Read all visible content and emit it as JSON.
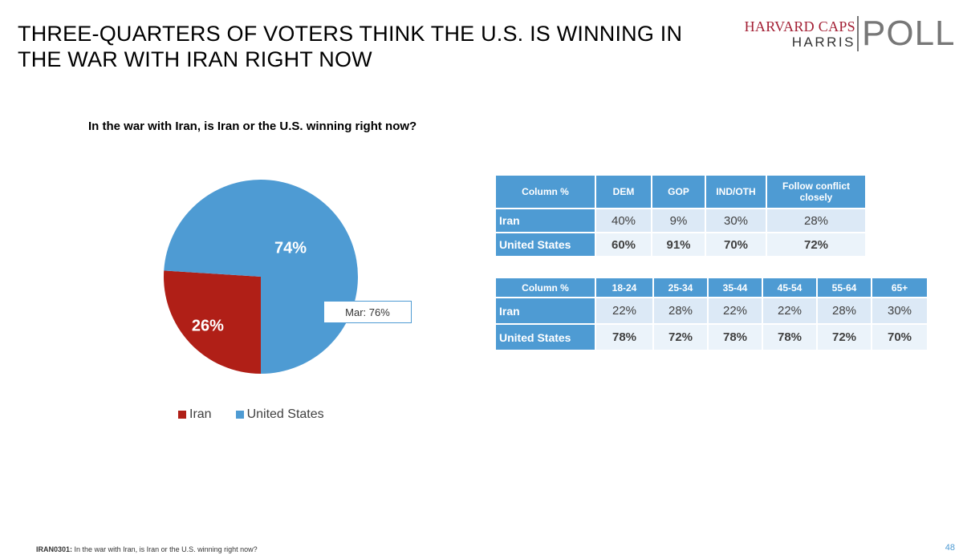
{
  "slide": {
    "title": "THREE-QUARTERS OF VOTERS THINK THE U.S. IS WINNING IN THE WAR WITH IRAN RIGHT NOW",
    "question": "In the war with Iran, is Iran or the U.S. winning right now?",
    "page_number": "48"
  },
  "logo": {
    "line1": "HARVARD CAPS",
    "line2": "HARRIS",
    "line3": "POLL"
  },
  "footer": {
    "code": "IRAN0301:",
    "text": "In the war with Iran, is Iran or the U.S. winning right now?"
  },
  "colors": {
    "iran": "#b01f17",
    "united_states": "#4e9bd3"
  },
  "chart_data": [
    {
      "type": "pie",
      "title": "In the war with Iran, is Iran or the U.S. winning right now?",
      "categories": [
        "Iran",
        "United States"
      ],
      "values": [
        26,
        74
      ],
      "data_labels": [
        "26%",
        "74%"
      ],
      "annotation": "Mar: 76%",
      "legend_position": "bottom"
    },
    {
      "type": "table",
      "header_label": "Column %",
      "columns": [
        "DEM",
        "GOP",
        "IND/OTH",
        "Follow conflict closely"
      ],
      "rows": [
        {
          "label": "Iran",
          "values": [
            "40%",
            "9%",
            "30%",
            "28%"
          ]
        },
        {
          "label": "United States",
          "values": [
            "60%",
            "91%",
            "70%",
            "72%"
          ]
        }
      ]
    },
    {
      "type": "table",
      "header_label": "Column %",
      "columns": [
        "18-24",
        "25-34",
        "35-44",
        "45-54",
        "55-64",
        "65+"
      ],
      "rows": [
        {
          "label": "Iran",
          "values": [
            "22%",
            "28%",
            "22%",
            "22%",
            "28%",
            "30%"
          ]
        },
        {
          "label": "United States",
          "values": [
            "78%",
            "72%",
            "78%",
            "78%",
            "72%",
            "70%"
          ]
        }
      ]
    }
  ]
}
